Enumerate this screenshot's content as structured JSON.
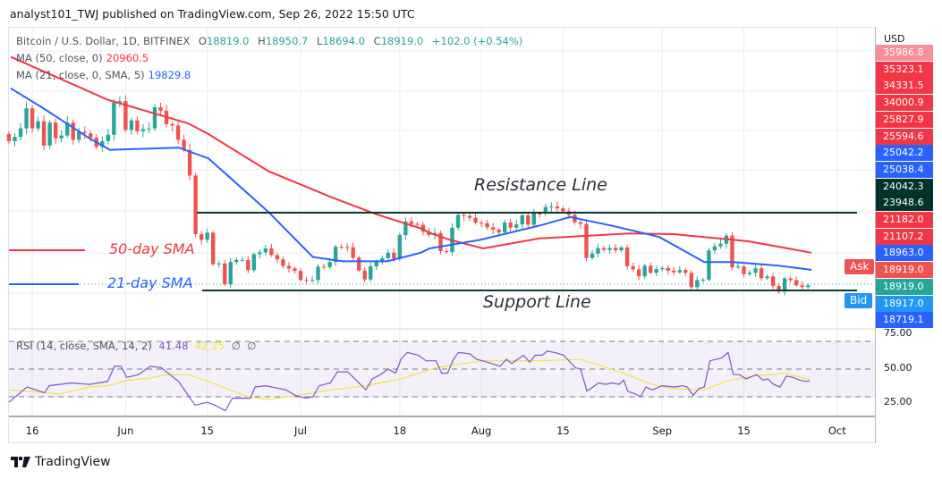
{
  "header": {
    "published": "analyst101_TWJ published on TradingView.com, Sep 26, 2022 15:50 UTC"
  },
  "legend": {
    "symbol": "Bitcoin / U.S. Dollar, 1D, BITFINEX",
    "o_label": "O",
    "o": "18819.0",
    "h_label": "H",
    "h": "18950.7",
    "l_label": "L",
    "l": "18694.0",
    "c_label": "C",
    "c": "18919.0",
    "change": "+102.0 (+0.54%)",
    "ma50_label": "MA (50, close, 0)",
    "ma50_value": "20960.5",
    "ma21_label": "MA (21, close, 0, SMA, 5)",
    "ma21_value": "19829.8",
    "rsi_label": "RSI (14, close, SMA, 14, 2)",
    "rsi_value": "41.48",
    "rsi_sma_value": "42.25",
    "rsi_na1": "∅",
    "rsi_na2": "∅"
  },
  "price_axis": {
    "currency": "USD",
    "tags": [
      {
        "v": "35986.8",
        "c": "#f23645"
      },
      {
        "v": "35323.1",
        "c": "#f23645"
      },
      {
        "v": "34331.5",
        "c": "#f23645"
      },
      {
        "v": "34000.9",
        "c": "#f23645"
      },
      {
        "v": "25827.9",
        "c": "#f23645"
      },
      {
        "v": "25594.6",
        "c": "#f23645"
      },
      {
        "v": "25042.2",
        "c": "#2962ff"
      },
      {
        "v": "25038.4",
        "c": "#2962ff"
      },
      {
        "v": "24042.3",
        "c": "#00332a"
      },
      {
        "v": "23948.6",
        "c": "#00332a"
      },
      {
        "v": "21182.0",
        "c": "#f23645"
      },
      {
        "v": "21107.2",
        "c": "#f23645"
      },
      {
        "v": "18963.0",
        "c": "#2962ff"
      },
      {
        "v": "18919.0",
        "c": "#ef5350"
      },
      {
        "v": "18919.0",
        "c": "#26a69a"
      },
      {
        "v": "18917.0",
        "c": "#2196f3"
      },
      {
        "v": "18719.1",
        "c": "#2962ff"
      }
    ],
    "ask_label": "Ask",
    "bid_label": "Bid",
    "rsi_ticks": [
      "75.00",
      "50.00",
      "25.00"
    ]
  },
  "annotations": {
    "resistance": "Resistance Line",
    "support": "Support Line",
    "sma50": "50-day SMA",
    "sma21": "21-day SMA",
    "resistance_price": 24000,
    "support_price": 18560
  },
  "footer": {
    "brand": "TradingView"
  },
  "chart_data": {
    "type": "candlestick",
    "title": "Bitcoin / U.S. Dollar, 1D, BITFINEX",
    "start_date": "2022-05-12",
    "end_date": "2022-09-26",
    "x_tick_labels": [
      "16",
      "Jun",
      "15",
      "Jul",
      "18",
      "Aug",
      "15",
      "Sep",
      "15",
      "Oct"
    ],
    "x_tick_days": [
      4,
      20,
      34,
      50,
      67,
      81,
      95,
      112,
      126,
      142
    ],
    "y_range": [
      15900,
      37000
    ],
    "first_open": 29500,
    "close": [
      29000,
      29300,
      29900,
      31300,
      29900,
      30400,
      28700,
      30300,
      29200,
      29400,
      30300,
      29100,
      29650,
      29550,
      29250,
      28600,
      29000,
      29450,
      31700,
      31800,
      29800,
      30450,
      29700,
      29850,
      29900,
      31370,
      31130,
      30200,
      30100,
      29100,
      28400,
      26600,
      22500,
      22100,
      22600,
      20400,
      20450,
      19000,
      20550,
      20700,
      20700,
      19980,
      21100,
      21230,
      21500,
      21030,
      20730,
      20280,
      20100,
      19930,
      19290,
      19250,
      19300,
      20230,
      20190,
      20550,
      21620,
      21600,
      21580,
      20850,
      19960,
      19330,
      20250,
      20590,
      20820,
      21200,
      20790,
      22430,
      23390,
      23220,
      23150,
      22680,
      22450,
      22580,
      21310,
      21250,
      22950,
      23850,
      23780,
      23640,
      23300,
      23270,
      22980,
      22820,
      22620,
      23310,
      22950,
      23180,
      23810,
      23160,
      23950,
      23940,
      24400,
      24440,
      24300,
      24100,
      23850,
      23330,
      23210,
      20830,
      21140,
      21520,
      21400,
      21530,
      21370,
      21570,
      20260,
      20040,
      19550,
      20290,
      19800,
      20050,
      20130,
      19950,
      19830,
      19990,
      19790,
      18790,
      19290,
      19320,
      21360,
      21650,
      21830,
      22400,
      20170,
      20240,
      19700,
      19800,
      20110,
      19420,
      19540,
      18880,
      18480,
      19400,
      19290,
      18920,
      18800,
      18919
    ],
    "ma50": [
      [
        0.3,
        34900
      ],
      [
        16.9,
        31900
      ],
      [
        30.7,
        30250
      ],
      [
        34.2,
        29500
      ],
      [
        44.5,
        26900
      ],
      [
        55.2,
        25100
      ],
      [
        62.9,
        23900
      ],
      [
        70.6,
        22900
      ],
      [
        72.1,
        22600
      ],
      [
        75.6,
        22100
      ],
      [
        81.3,
        21500
      ],
      [
        91,
        22200
      ],
      [
        106.3,
        22550
      ],
      [
        114,
        22500
      ],
      [
        121.6,
        22200
      ],
      [
        126.8,
        22000
      ],
      [
        137.6,
        21200
      ]
    ],
    "ma21": [
      [
        0.3,
        32700
      ],
      [
        6.1,
        31250
      ],
      [
        13.8,
        29200
      ],
      [
        17.3,
        28400
      ],
      [
        29.1,
        28550
      ],
      [
        34.2,
        27800
      ],
      [
        44.5,
        24050
      ],
      [
        52.1,
        20900
      ],
      [
        57.2,
        20600
      ],
      [
        64.9,
        20600
      ],
      [
        70.6,
        21200
      ],
      [
        72.1,
        21500
      ],
      [
        80.8,
        22100
      ],
      [
        91,
        23100
      ],
      [
        96.2,
        23700
      ],
      [
        103.8,
        23050
      ],
      [
        111.5,
        22300
      ],
      [
        119.2,
        20550
      ],
      [
        124.2,
        20550
      ],
      [
        131.9,
        20300
      ],
      [
        137.6,
        20000
      ]
    ],
    "rsi": {
      "range": [
        0,
        100
      ],
      "bands": [
        30,
        50,
        70
      ],
      "rsi": [
        [
          0,
          26
        ],
        [
          3.1,
          37
        ],
        [
          6.1,
          33
        ],
        [
          6.9,
          38
        ],
        [
          10.7,
          40
        ],
        [
          13.8,
          39
        ],
        [
          16.9,
          41
        ],
        [
          18.1,
          52
        ],
        [
          19.2,
          52
        ],
        [
          20.2,
          44
        ],
        [
          22.2,
          46
        ],
        [
          24.2,
          52
        ],
        [
          26.1,
          51
        ],
        [
          29.1,
          41
        ],
        [
          31.9,
          24
        ],
        [
          34,
          26
        ],
        [
          35.3,
          24
        ],
        [
          37.1,
          20
        ],
        [
          38.3,
          29
        ],
        [
          41.4,
          29
        ],
        [
          42.2,
          37
        ],
        [
          44,
          38
        ],
        [
          47.5,
          35
        ],
        [
          49.1,
          31
        ],
        [
          50.9,
          29
        ],
        [
          52.1,
          30
        ],
        [
          53.2,
          38
        ],
        [
          55.1,
          40
        ],
        [
          56.3,
          48
        ],
        [
          58.1,
          48
        ],
        [
          61.2,
          35
        ],
        [
          62.3,
          43
        ],
        [
          63.7,
          46
        ],
        [
          65,
          50
        ],
        [
          66.3,
          47
        ],
        [
          67.2,
          57
        ],
        [
          68.3,
          62
        ],
        [
          70.2,
          60
        ],
        [
          71.5,
          56
        ],
        [
          73.2,
          56
        ],
        [
          74.2,
          47
        ],
        [
          75.2,
          47
        ],
        [
          76.2,
          57
        ],
        [
          77.1,
          62
        ],
        [
          79,
          61
        ],
        [
          80.2,
          57
        ],
        [
          82.1,
          55
        ],
        [
          84.2,
          52
        ],
        [
          85.3,
          57
        ],
        [
          86.2,
          54
        ],
        [
          88.2,
          60
        ],
        [
          89.3,
          55
        ],
        [
          90.2,
          60
        ],
        [
          91.4,
          60
        ],
        [
          92.3,
          63
        ],
        [
          93.6,
          62
        ],
        [
          95.1,
          60
        ],
        [
          97.1,
          51
        ],
        [
          98,
          50
        ],
        [
          99.1,
          34
        ],
        [
          101.1,
          40
        ],
        [
          102.3,
          39
        ],
        [
          103.5,
          40
        ],
        [
          104.6,
          39
        ],
        [
          105.4,
          42
        ],
        [
          106.1,
          34
        ],
        [
          107.4,
          32
        ],
        [
          108.3,
          30
        ],
        [
          109.2,
          37
        ],
        [
          110.3,
          35
        ],
        [
          112,
          38
        ],
        [
          114.1,
          37
        ],
        [
          115.5,
          38
        ],
        [
          116.3,
          37
        ],
        [
          117.3,
          31
        ],
        [
          118.3,
          36
        ],
        [
          119.2,
          37
        ],
        [
          120.2,
          56
        ],
        [
          122.2,
          58
        ],
        [
          123.3,
          62
        ],
        [
          124.2,
          46
        ],
        [
          125.2,
          46
        ],
        [
          126.4,
          43
        ],
        [
          127,
          44
        ],
        [
          128.2,
          46
        ],
        [
          129.3,
          42
        ],
        [
          130.1,
          43
        ],
        [
          131.1,
          39
        ],
        [
          132.2,
          37
        ],
        [
          133.3,
          45
        ],
        [
          134.4,
          44
        ],
        [
          135.6,
          42
        ],
        [
          136.7,
          41
        ],
        [
          137.3,
          41.48
        ]
      ],
      "sma": [
        [
          0,
          35
        ],
        [
          3.5,
          34
        ],
        [
          8.7,
          32
        ],
        [
          13.8,
          37
        ],
        [
          16.9,
          38
        ],
        [
          20.4,
          42
        ],
        [
          24.1,
          43.5
        ],
        [
          27.1,
          46
        ],
        [
          30.7,
          46
        ],
        [
          34.2,
          41
        ],
        [
          41,
          30
        ],
        [
          44.5,
          28
        ],
        [
          49.5,
          31
        ],
        [
          55.1,
          35
        ],
        [
          61.2,
          38
        ],
        [
          67.2,
          43
        ],
        [
          73.3,
          51
        ],
        [
          81.1,
          56
        ],
        [
          91.4,
          56
        ],
        [
          98,
          57
        ],
        [
          105.4,
          47
        ],
        [
          109.5,
          40
        ],
        [
          113.2,
          36
        ],
        [
          119.2,
          35
        ],
        [
          123.5,
          42
        ],
        [
          127.6,
          45
        ],
        [
          133.1,
          47
        ],
        [
          137.3,
          42.25
        ]
      ]
    },
    "colors": {
      "up": "#26a69a",
      "down": "#ef5350",
      "ma50": "#f23645",
      "ma21": "#2962ff",
      "rsi": "#7e57c2",
      "rsi_sma": "#f5e33b",
      "sr_line": "#0b3b30"
    }
  }
}
